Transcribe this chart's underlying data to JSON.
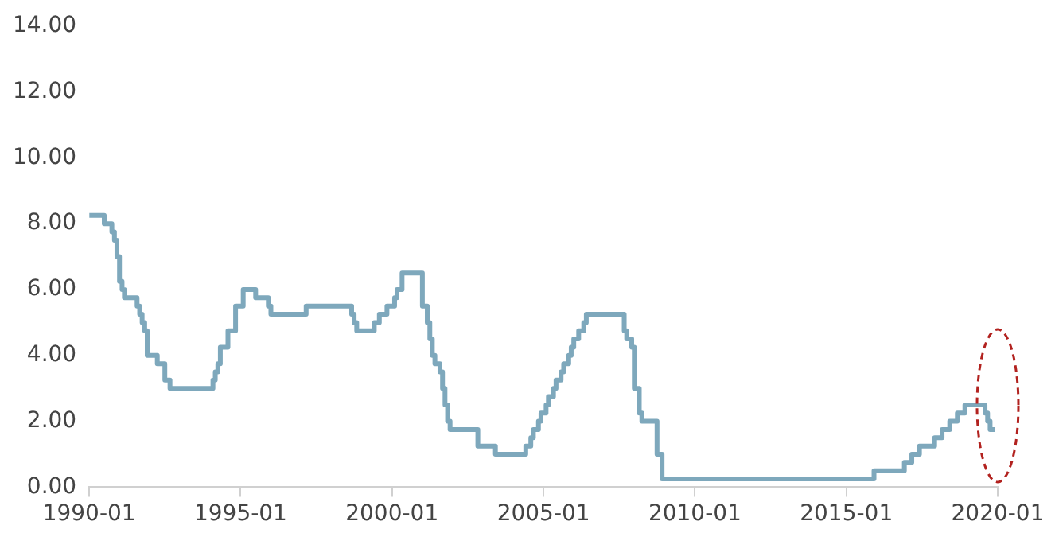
{
  "chart_data": {
    "type": "step",
    "x": [
      "1990-01",
      "1990-07",
      "1990-10",
      "1990-11",
      "1990-12",
      "1991-01",
      "1991-02",
      "1991-03",
      "1991-08",
      "1991-09",
      "1991-10",
      "1991-11",
      "1991-12",
      "1992-04",
      "1992-07",
      "1992-09",
      "1994-02",
      "1994-03",
      "1994-04",
      "1994-05",
      "1994-08",
      "1994-11",
      "1995-02",
      "1995-07",
      "1995-12",
      "1996-01",
      "1997-03",
      "1998-09",
      "1998-10",
      "1998-11",
      "1999-06",
      "1999-08",
      "1999-11",
      "2000-02",
      "2000-03",
      "2000-05",
      "2001-01",
      "2001-02",
      "2001-03",
      "2001-04",
      "2001-05",
      "2001-06",
      "2001-08",
      "2001-09",
      "2001-10",
      "2001-11",
      "2001-12",
      "2002-11",
      "2003-06",
      "2004-06",
      "2004-08",
      "2004-09",
      "2004-11",
      "2004-12",
      "2005-02",
      "2005-03",
      "2005-05",
      "2005-06",
      "2005-08",
      "2005-09",
      "2005-11",
      "2005-12",
      "2006-01",
      "2006-03",
      "2006-05",
      "2006-06",
      "2007-09",
      "2007-10",
      "2007-12",
      "2008-01",
      "2008-03",
      "2008-04",
      "2008-10",
      "2008-12",
      "2015-12",
      "2016-12",
      "2017-03",
      "2017-06",
      "2017-12",
      "2018-03",
      "2018-06",
      "2018-09",
      "2018-12",
      "2019-08",
      "2019-09",
      "2019-10",
      "2019-12"
    ],
    "series": [
      {
        "color": "#7ea8bc",
        "values": [
          8.25,
          8.0,
          7.75,
          7.5,
          7.0,
          6.25,
          6.0,
          5.75,
          5.5,
          5.25,
          5.0,
          4.75,
          4.0,
          3.75,
          3.25,
          3.0,
          3.25,
          3.5,
          3.75,
          4.25,
          4.75,
          5.5,
          6.0,
          5.75,
          5.5,
          5.25,
          5.5,
          5.25,
          5.0,
          4.75,
          5.0,
          5.25,
          5.5,
          5.75,
          6.0,
          6.5,
          5.5,
          5.5,
          5.0,
          4.5,
          4.0,
          3.75,
          3.5,
          3.0,
          2.5,
          2.0,
          1.75,
          1.25,
          1.0,
          1.25,
          1.5,
          1.75,
          2.0,
          2.25,
          2.5,
          2.75,
          3.0,
          3.25,
          3.5,
          3.75,
          4.0,
          4.25,
          4.5,
          4.75,
          5.0,
          5.25,
          4.75,
          4.5,
          4.25,
          3.0,
          2.25,
          2.0,
          1.0,
          0.25,
          0.5,
          0.75,
          1.0,
          1.25,
          1.5,
          1.75,
          2.0,
          2.25,
          2.5,
          2.25,
          2.0,
          1.75,
          1.75
        ]
      }
    ],
    "xlim": [
      "1990-01",
      "2020-01"
    ],
    "xticks": [
      "1990-01",
      "1995-01",
      "2000-01",
      "2005-01",
      "2010-01",
      "2015-01",
      "2020-01"
    ],
    "ylim": [
      0,
      14
    ],
    "yticks": [
      {
        "value": 0,
        "label": "0.00"
      },
      {
        "value": 2,
        "label": "2.00"
      },
      {
        "value": 4,
        "label": "4.00"
      },
      {
        "value": 6,
        "label": "6.00"
      },
      {
        "value": 8,
        "label": "8.00"
      },
      {
        "value": 10,
        "label": "10.00"
      },
      {
        "value": 12,
        "label": "12.00"
      },
      {
        "value": 14,
        "label": "14.00"
      }
    ],
    "grid": false,
    "legend": false,
    "marker": "none",
    "line_style": "solid"
  }
}
